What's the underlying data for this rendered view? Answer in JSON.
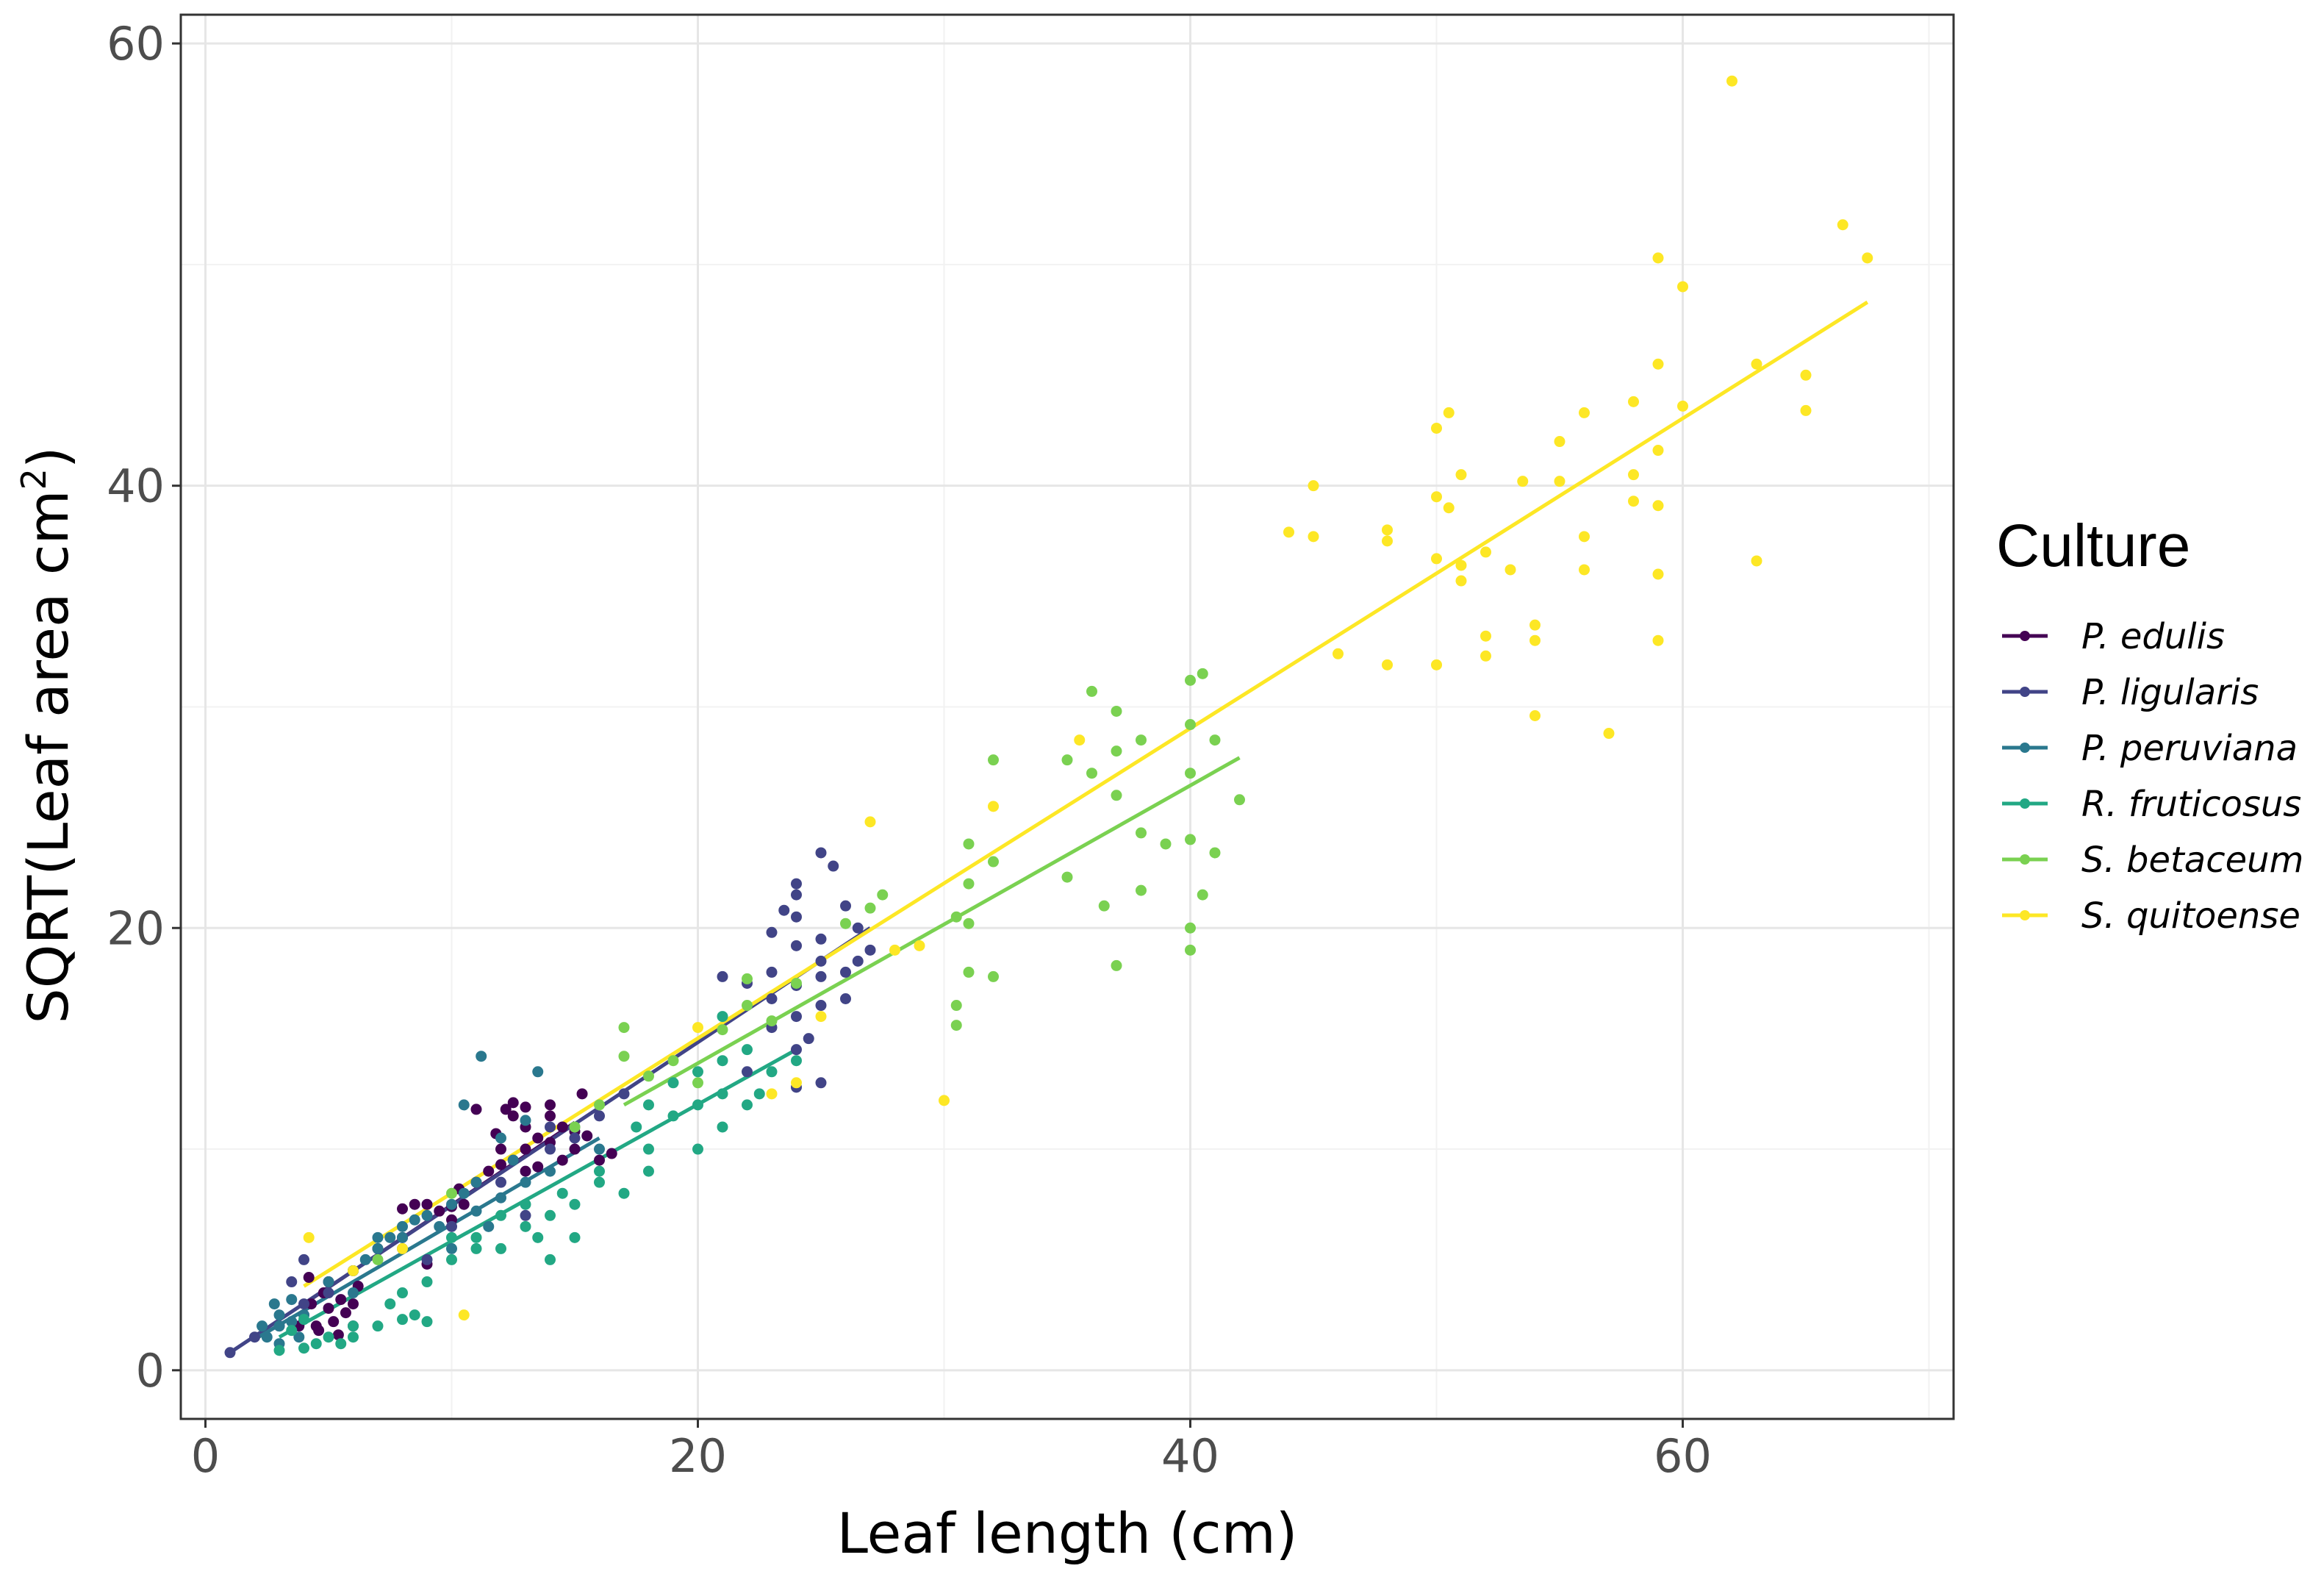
{
  "chart_data": {
    "type": "scatter",
    "title": "",
    "xlabel": "Leaf length (cm)",
    "ylabel": "SQRT(Leaf area cm",
    "ylabel_superscript": "2",
    "ylabel_close": ")",
    "xlim": [
      -1,
      71
    ],
    "ylim": [
      -2.2,
      61.3
    ],
    "x_ticks": [
      0,
      20,
      40,
      60
    ],
    "y_ticks": [
      0,
      20,
      40,
      60
    ],
    "x_tick_labels": [
      "0",
      "20",
      "40",
      "60"
    ],
    "y_tick_labels": [
      "0",
      "20",
      "40",
      "60"
    ],
    "grid": true,
    "legend": {
      "title": "Culture",
      "placement": "right"
    },
    "series": [
      {
        "name": "P. edulis",
        "color": "#440154",
        "fit": [
          [
            4,
            3.0
          ],
          [
            15,
            11.2
          ]
        ],
        "points": [
          [
            4,
            2.5
          ],
          [
            4.3,
            3
          ],
          [
            4.5,
            2
          ],
          [
            4.8,
            3.5
          ],
          [
            5,
            2.8
          ],
          [
            5.2,
            2.2
          ],
          [
            5.5,
            3.2
          ],
          [
            5.7,
            2.6
          ],
          [
            6,
            3
          ],
          [
            6,
            2
          ],
          [
            5,
            4
          ],
          [
            4.2,
            4.2
          ],
          [
            3.8,
            2
          ],
          [
            6.2,
            3.8
          ],
          [
            4.6,
            1.8
          ],
          [
            5.4,
            1.6
          ],
          [
            9,
            7.5
          ],
          [
            9.5,
            7.2
          ],
          [
            10,
            7.4
          ],
          [
            8.5,
            7.5
          ],
          [
            8,
            7.3
          ],
          [
            10.5,
            7.5
          ],
          [
            10,
            6.8
          ],
          [
            10.3,
            8.2
          ],
          [
            11,
            8.5
          ],
          [
            11.5,
            9
          ],
          [
            12,
            9.3
          ],
          [
            12,
            10
          ],
          [
            12.5,
            9.5
          ],
          [
            13,
            10
          ],
          [
            13,
            11
          ],
          [
            13.5,
            10.5
          ],
          [
            14,
            10.3
          ],
          [
            14,
            11.5
          ],
          [
            14.5,
            11
          ],
          [
            15,
            10.8
          ],
          [
            15,
            10
          ],
          [
            14.5,
            9.5
          ],
          [
            13.5,
            9.2
          ],
          [
            13,
            9
          ],
          [
            12.5,
            11.5
          ],
          [
            11.8,
            10.7
          ],
          [
            12.2,
            11.8
          ],
          [
            13,
            11.9
          ],
          [
            14,
            12
          ],
          [
            12.5,
            12.1
          ],
          [
            11,
            11.8
          ],
          [
            15.5,
            10.6
          ],
          [
            16,
            9.5
          ],
          [
            16.5,
            9.8
          ],
          [
            15.3,
            12.5
          ],
          [
            7,
            5.5
          ],
          [
            8,
            6
          ],
          [
            9,
            4.8
          ],
          [
            6,
            4.5
          ]
        ]
      },
      {
        "name": "P. ligularis",
        "color": "#414487",
        "fit": [
          [
            1,
            0.8
          ],
          [
            27,
            20.0
          ]
        ],
        "points": [
          [
            24,
            22
          ],
          [
            25,
            23.4
          ],
          [
            25.5,
            22.8
          ],
          [
            24,
            21.5
          ],
          [
            23.5,
            20.8
          ],
          [
            24,
            20.5
          ],
          [
            26,
            21
          ],
          [
            26.5,
            20
          ],
          [
            25,
            19.5
          ],
          [
            23,
            19.8
          ],
          [
            24,
            19.2
          ],
          [
            25,
            18.5
          ],
          [
            26,
            18
          ],
          [
            23,
            18
          ],
          [
            24,
            17.4
          ],
          [
            25,
            17.8
          ],
          [
            23,
            16.8
          ],
          [
            22,
            17.5
          ],
          [
            24,
            16
          ],
          [
            25,
            16.5
          ],
          [
            26,
            16.8
          ],
          [
            23,
            15.5
          ],
          [
            24,
            14.5
          ],
          [
            25,
            13
          ],
          [
            24,
            12.8
          ],
          [
            21,
            17.8
          ],
          [
            27,
            19
          ],
          [
            16,
            11.5
          ],
          [
            17,
            12.5
          ],
          [
            14,
            10
          ],
          [
            12,
            8.5
          ],
          [
            10,
            6.5
          ],
          [
            8,
            5.5
          ],
          [
            6,
            4.5
          ],
          [
            5,
            3.5
          ],
          [
            4,
            3
          ],
          [
            3,
            2
          ],
          [
            2,
            1.5
          ],
          [
            1,
            0.8
          ],
          [
            13,
            7
          ],
          [
            9,
            5
          ],
          [
            15,
            10.5
          ],
          [
            14,
            11
          ],
          [
            22,
            13.5
          ],
          [
            26.5,
            18.5
          ],
          [
            24.5,
            15
          ],
          [
            4,
            5
          ],
          [
            3.5,
            4
          ]
        ]
      },
      {
        "name": "P. peruviana",
        "color": "#2A788E",
        "fit": [
          [
            2,
            1.4
          ],
          [
            16,
            10.5
          ]
        ],
        "points": [
          [
            2.5,
            1.5
          ],
          [
            3,
            2
          ],
          [
            3,
            2.5
          ],
          [
            3.5,
            2.2
          ],
          [
            3,
            1.2
          ],
          [
            2.8,
            3
          ],
          [
            4,
            2.5
          ],
          [
            3.5,
            3.2
          ],
          [
            2.3,
            2
          ],
          [
            3.8,
            1.5
          ],
          [
            5,
            4
          ],
          [
            6,
            4.5
          ],
          [
            6.5,
            5
          ],
          [
            7,
            5.5
          ],
          [
            7.5,
            6
          ],
          [
            8,
            6.5
          ],
          [
            8.5,
            6.8
          ],
          [
            9,
            7
          ],
          [
            9.5,
            6.5
          ],
          [
            10,
            7.5
          ],
          [
            10.5,
            8
          ],
          [
            11,
            8.5
          ],
          [
            8,
            6
          ],
          [
            7,
            6
          ],
          [
            11.2,
            14.2
          ],
          [
            13.5,
            13.5
          ],
          [
            10.5,
            12
          ],
          [
            12,
            10.5
          ],
          [
            13,
            11.3
          ],
          [
            14,
            9
          ],
          [
            15,
            11
          ],
          [
            16,
            10
          ],
          [
            12.5,
            9.5
          ],
          [
            13,
            8.5
          ],
          [
            11.5,
            6.5
          ],
          [
            6,
            3.5
          ],
          [
            10,
            5.5
          ],
          [
            12,
            7.8
          ],
          [
            11,
            7.2
          ]
        ]
      },
      {
        "name": "R. fruticosus",
        "color": "#22A884",
        "fit": [
          [
            3,
            1.5
          ],
          [
            24,
            14.5
          ]
        ],
        "points": [
          [
            3,
            0.9
          ],
          [
            4,
            1
          ],
          [
            4.5,
            1.2
          ],
          [
            5,
            1.5
          ],
          [
            6,
            1.5
          ],
          [
            5.5,
            1.2
          ],
          [
            7,
            2
          ],
          [
            8,
            2.3
          ],
          [
            9,
            2.2
          ],
          [
            8.5,
            2.5
          ],
          [
            6,
            2
          ],
          [
            7.5,
            3
          ],
          [
            8,
            3.5
          ],
          [
            9,
            4
          ],
          [
            10,
            5
          ],
          [
            11,
            5.5
          ],
          [
            11,
            6
          ],
          [
            12,
            5.5
          ],
          [
            13,
            6.5
          ],
          [
            13,
            7.5
          ],
          [
            14,
            7
          ],
          [
            14.5,
            8
          ],
          [
            15,
            7.5
          ],
          [
            12,
            7
          ],
          [
            10,
            6
          ],
          [
            14,
            5
          ],
          [
            13.5,
            6
          ],
          [
            16,
            9
          ],
          [
            17,
            8
          ],
          [
            18,
            10
          ],
          [
            17.5,
            11
          ],
          [
            18,
            12
          ],
          [
            19,
            11.5
          ],
          [
            19,
            13
          ],
          [
            20,
            12
          ],
          [
            20,
            13.5
          ],
          [
            21,
            12.5
          ],
          [
            21,
            11
          ],
          [
            22,
            12
          ],
          [
            21,
            14
          ],
          [
            22,
            14.5
          ],
          [
            22.5,
            12.5
          ],
          [
            23,
            13.5
          ],
          [
            24,
            14
          ],
          [
            20,
            10
          ],
          [
            18,
            9
          ],
          [
            16,
            8.5
          ],
          [
            15,
            6
          ],
          [
            21,
            16
          ],
          [
            3.5,
            1.8
          ],
          [
            4,
            2.3
          ]
        ]
      },
      {
        "name": "S. betaceum",
        "color": "#7AD151",
        "fit": [
          [
            17,
            12.0
          ],
          [
            42,
            27.7
          ]
        ],
        "points": [
          [
            36,
            30.7
          ],
          [
            37,
            29.8
          ],
          [
            40,
            31.2
          ],
          [
            40.5,
            31.5
          ],
          [
            40,
            29.2
          ],
          [
            41,
            28.5
          ],
          [
            40,
            27
          ],
          [
            42,
            25.8
          ],
          [
            41,
            23.4
          ],
          [
            40,
            24
          ],
          [
            40.5,
            21.5
          ],
          [
            40,
            20
          ],
          [
            40,
            19
          ],
          [
            39,
            23.8
          ],
          [
            38,
            28.5
          ],
          [
            37,
            28
          ],
          [
            36,
            27
          ],
          [
            35,
            27.6
          ],
          [
            37,
            26
          ],
          [
            38,
            24.3
          ],
          [
            38,
            21.7
          ],
          [
            36.5,
            21
          ],
          [
            37,
            18.3
          ],
          [
            35,
            22.3
          ],
          [
            32,
            27.6
          ],
          [
            31,
            23.8
          ],
          [
            31,
            22
          ],
          [
            30.5,
            20.5
          ],
          [
            31,
            20.2
          ],
          [
            32,
            23
          ],
          [
            31,
            18
          ],
          [
            32,
            17.8
          ],
          [
            30.5,
            16.5
          ],
          [
            30.5,
            15.6
          ],
          [
            27.5,
            21.5
          ],
          [
            27,
            20.9
          ],
          [
            26,
            20.2
          ],
          [
            24,
            17.5
          ],
          [
            22,
            17.7
          ],
          [
            22,
            16.5
          ],
          [
            21,
            15.4
          ],
          [
            23,
            15.8
          ],
          [
            19,
            14
          ],
          [
            18,
            13.3
          ],
          [
            17,
            15.5
          ],
          [
            17,
            14.2
          ],
          [
            20,
            13
          ],
          [
            16,
            12
          ],
          [
            15,
            11
          ],
          [
            10,
            8
          ],
          [
            7,
            5
          ]
        ]
      },
      {
        "name": "S. quitoense",
        "color": "#FDE725",
        "fit": [
          [
            4,
            3.8
          ],
          [
            67.5,
            48.3
          ]
        ],
        "points": [
          [
            62,
            58.3
          ],
          [
            66.5,
            51.8
          ],
          [
            67.5,
            50.3
          ],
          [
            59,
            50.3
          ],
          [
            60,
            49
          ],
          [
            63,
            45.5
          ],
          [
            65,
            45
          ],
          [
            65,
            43.4
          ],
          [
            59,
            45.5
          ],
          [
            60,
            43.6
          ],
          [
            58,
            43.8
          ],
          [
            56,
            43.3
          ],
          [
            55,
            42
          ],
          [
            50,
            42.6
          ],
          [
            50.5,
            43.3
          ],
          [
            51,
            40.5
          ],
          [
            53.5,
            40.2
          ],
          [
            55,
            40.2
          ],
          [
            58,
            40.5
          ],
          [
            59,
            41.6
          ],
          [
            58,
            39.3
          ],
          [
            59,
            39.1
          ],
          [
            50,
            39.5
          ],
          [
            50.5,
            39
          ],
          [
            45,
            40
          ],
          [
            44,
            37.9
          ],
          [
            45,
            37.7
          ],
          [
            48,
            38
          ],
          [
            48,
            37.5
          ],
          [
            50,
            36.7
          ],
          [
            51,
            36.4
          ],
          [
            51,
            35.7
          ],
          [
            52,
            37
          ],
          [
            53,
            36.2
          ],
          [
            56,
            37.7
          ],
          [
            56,
            36.2
          ],
          [
            59,
            36
          ],
          [
            63,
            36.6
          ],
          [
            52,
            33.2
          ],
          [
            52,
            32.3
          ],
          [
            54,
            33.7
          ],
          [
            54,
            33
          ],
          [
            59,
            33
          ],
          [
            50,
            31.9
          ],
          [
            48,
            31.9
          ],
          [
            46,
            32.4
          ],
          [
            54,
            29.6
          ],
          [
            57,
            28.8
          ],
          [
            27,
            24.8
          ],
          [
            30,
            12.2
          ],
          [
            10.5,
            2.5
          ],
          [
            4.2,
            6
          ],
          [
            28,
            19
          ],
          [
            24,
            13
          ],
          [
            23,
            12.5
          ],
          [
            20,
            15.5
          ],
          [
            25,
            16
          ],
          [
            35.5,
            28.5
          ],
          [
            32,
            25.5
          ],
          [
            29,
            19.2
          ],
          [
            6,
            4.5
          ],
          [
            8,
            5.5
          ]
        ]
      }
    ]
  }
}
